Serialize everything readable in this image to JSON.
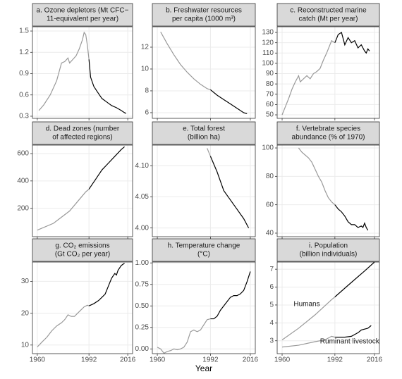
{
  "chart_data": [
    {
      "type": "line",
      "title": [
        "a. Ozone depletors (Mt CFC−",
        "11-equivalent per year)"
      ],
      "xlim": [
        1957,
        2019
      ],
      "xticks": [
        1960,
        1992,
        2016
      ],
      "ylim": [
        0.27,
        1.56
      ],
      "yticks": [
        0.3,
        0.6,
        0.9,
        1.2,
        1.5
      ],
      "series": [
        {
          "color": "#999999",
          "x": [
            1961,
            1964,
            1968,
            1972,
            1975,
            1977,
            1979,
            1980,
            1982,
            1984,
            1986,
            1988,
            1989,
            1990,
            1991,
            1992
          ],
          "values": [
            0.38,
            0.46,
            0.6,
            0.8,
            1.05,
            1.07,
            1.12,
            1.05,
            1.1,
            1.15,
            1.25,
            1.38,
            1.48,
            1.45,
            1.3,
            1.1
          ]
        },
        {
          "color": "#000000",
          "x": [
            1992,
            1993,
            1995,
            1997,
            2000,
            2003,
            2006,
            2009,
            2012,
            2014,
            2015
          ],
          "values": [
            1.1,
            0.85,
            0.72,
            0.65,
            0.55,
            0.5,
            0.45,
            0.42,
            0.38,
            0.35,
            0.34
          ]
        }
      ]
    },
    {
      "type": "line",
      "title": [
        "b. Freshwater resources",
        "per capita (1000 m³)"
      ],
      "xlim": [
        1957,
        2019
      ],
      "xticks": [
        1960,
        1992,
        2016
      ],
      "ylim": [
        5.48,
        13.87
      ],
      "yticks": [
        6,
        8,
        10,
        12
      ],
      "series": [
        {
          "color": "#999999",
          "x": [
            1962,
            1966,
            1970,
            1974,
            1978,
            1982,
            1986,
            1990,
            1992
          ],
          "values": [
            13.4,
            12.3,
            11.3,
            10.4,
            9.7,
            9.1,
            8.6,
            8.2,
            8.1
          ]
        },
        {
          "color": "#000000",
          "x": [
            1992,
            1996,
            2000,
            2004,
            2008,
            2012,
            2014
          ],
          "values": [
            8.1,
            7.6,
            7.2,
            6.8,
            6.4,
            6.0,
            5.9
          ]
        }
      ]
    },
    {
      "type": "line",
      "title": [
        "c. Reconstructed marine",
        "catch (Mt per year)"
      ],
      "xlim": [
        1957,
        2019
      ],
      "xticks": [
        1960,
        1992,
        2016
      ],
      "ylim": [
        46.6,
        135.5
      ],
      "yticks": [
        50,
        60,
        70,
        80,
        90,
        100,
        110,
        120,
        130
      ],
      "series": [
        {
          "color": "#999999",
          "x": [
            1960,
            1962,
            1964,
            1966,
            1968,
            1970,
            1971,
            1973,
            1975,
            1977,
            1979,
            1981,
            1983,
            1985,
            1987,
            1989,
            1990,
            1992
          ],
          "values": [
            50,
            58,
            66,
            75,
            82,
            88,
            82,
            85,
            88,
            85,
            90,
            92,
            95,
            103,
            110,
            118,
            122,
            120
          ]
        },
        {
          "color": "#000000",
          "x": [
            1992,
            1994,
            1996,
            1998,
            2000,
            2002,
            2004,
            2006,
            2008,
            2010,
            2011,
            2012,
            2013
          ],
          "values": [
            120,
            128,
            130,
            118,
            125,
            120,
            122,
            115,
            118,
            112,
            110,
            114,
            112
          ]
        }
      ]
    },
    {
      "type": "line",
      "title": [
        "d. Dead zones (number",
        "of affected regions)"
      ],
      "xlim": [
        1957,
        2019
      ],
      "xticks": [
        1960,
        1992,
        2016
      ],
      "ylim": [
        -8,
        662
      ],
      "yticks": [
        200,
        400,
        600
      ],
      "series": [
        {
          "color": "#999999",
          "x": [
            1960,
            1970,
            1980,
            1985,
            1990,
            1992
          ],
          "values": [
            40,
            90,
            180,
            250,
            320,
            340
          ]
        },
        {
          "color": "#000000",
          "x": [
            1992,
            1996,
            2000,
            2004,
            2008,
            2012,
            2014
          ],
          "values": [
            340,
            410,
            480,
            530,
            580,
            630,
            650
          ]
        }
      ]
    },
    {
      "type": "line",
      "title": [
        "e. Total forest",
        "(billion ha)"
      ],
      "xlim": [
        1957,
        2019
      ],
      "xticks": [
        1960,
        1992,
        2016
      ],
      "ylim": [
        3.986,
        4.133
      ],
      "yticks": [
        {
          "value": 4,
          "label": "4.00"
        },
        4.05,
        {
          "value": 4.1,
          "label": "4.10"
        }
      ],
      "series": [
        {
          "color": "#999999",
          "x": [
            1990,
            1992
          ],
          "values": [
            4.128,
            4.115
          ]
        },
        {
          "color": "#000000",
          "x": [
            1992,
            1996,
            2000,
            2004,
            2008,
            2012,
            2015
          ],
          "values": [
            4.115,
            4.09,
            4.06,
            4.045,
            4.03,
            4.015,
            4.0
          ]
        }
      ]
    },
    {
      "type": "line",
      "title": [
        "f. Vertebrate species",
        "abundance (% of 1970)"
      ],
      "xlim": [
        1957,
        2019
      ],
      "xticks": [
        1960,
        1992,
        2016
      ],
      "ylim": [
        37.5,
        102
      ],
      "yticks": [
        40,
        60,
        80,
        100
      ],
      "series": [
        {
          "color": "#999999",
          "x": [
            1970,
            1972,
            1974,
            1976,
            1978,
            1980,
            1982,
            1984,
            1986,
            1988,
            1990,
            1992
          ],
          "values": [
            100,
            97,
            95,
            93,
            90,
            85,
            80,
            76,
            70,
            65,
            62,
            60
          ]
        },
        {
          "color": "#000000",
          "x": [
            1992,
            1994,
            1996,
            1998,
            2000,
            2002,
            2004,
            2006,
            2008,
            2009,
            2010,
            2011,
            2012
          ],
          "values": [
            60,
            57,
            55,
            52,
            48,
            46,
            46,
            44,
            45,
            44,
            47,
            44,
            42
          ]
        }
      ]
    },
    {
      "type": "line",
      "title": [
        "g. CO₂ emissions",
        "(Gt CO₂ per year)"
      ],
      "xlim": [
        1957,
        2019
      ],
      "xticks": [
        1960,
        1992,
        2016
      ],
      "ylim": [
        7.3,
        36.07
      ],
      "yticks": [
        10,
        20,
        30
      ],
      "series": [
        {
          "color": "#999999",
          "x": [
            1960,
            1963,
            1966,
            1969,
            1972,
            1975,
            1977,
            1979,
            1981,
            1983,
            1985,
            1987,
            1989,
            1991,
            1992
          ],
          "values": [
            9.4,
            11,
            12.5,
            14.5,
            16,
            17,
            18,
            19.5,
            19,
            19,
            20,
            21,
            22,
            22.5,
            22.3
          ]
        },
        {
          "color": "#000000",
          "x": [
            1992,
            1995,
            1998,
            2000,
            2002,
            2004,
            2006,
            2008,
            2009,
            2010,
            2012,
            2014
          ],
          "values": [
            22.3,
            23,
            24,
            25,
            26,
            28.5,
            31,
            32.5,
            32,
            33.5,
            35,
            35.7
          ]
        }
      ]
    },
    {
      "type": "line",
      "title": [
        "h. Temperature change",
        "(°C)"
      ],
      "xlabel": "Year",
      "xlim": [
        1957,
        2019
      ],
      "xticks": [
        1960,
        1992,
        2016
      ],
      "ylim": [
        -0.055,
        1.01
      ],
      "yticks": [
        {
          "value": 0,
          "label": "0.00"
        },
        0.25,
        {
          "value": 0.5,
          "label": "0.50"
        },
        0.75,
        {
          "value": 1,
          "label": "1.00"
        }
      ],
      "series": [
        {
          "color": "#999999",
          "x": [
            1960,
            1962,
            1964,
            1966,
            1968,
            1970,
            1972,
            1974,
            1976,
            1978,
            1980,
            1982,
            1984,
            1986,
            1988,
            1990,
            1992
          ],
          "values": [
            0.02,
            0.0,
            -0.05,
            -0.03,
            -0.02,
            0.0,
            -0.01,
            0.0,
            0.02,
            0.08,
            0.2,
            0.22,
            0.2,
            0.22,
            0.28,
            0.34,
            0.35
          ]
        },
        {
          "color": "#000000",
          "x": [
            1992,
            1994,
            1996,
            1998,
            2000,
            2002,
            2004,
            2006,
            2008,
            2010,
            2012,
            2014,
            2016
          ],
          "values": [
            0.35,
            0.35,
            0.38,
            0.45,
            0.5,
            0.55,
            0.6,
            0.62,
            0.62,
            0.64,
            0.68,
            0.78,
            0.9
          ]
        }
      ]
    },
    {
      "type": "line",
      "title": [
        "i. Population",
        "(billion individuals)"
      ],
      "xlim": [
        1957,
        2019
      ],
      "xticks": [
        1960,
        1992,
        2016
      ],
      "ylim": [
        2.28,
        7.4
      ],
      "yticks": [
        3,
        4,
        5,
        6,
        7
      ],
      "annotations": [
        {
          "text": "Humans",
          "x": 1967,
          "y": 5.05
        },
        {
          "text": "Ruminant livestock",
          "x": 1983,
          "y": 2.95
        }
      ],
      "series": [
        {
          "color": "#999999",
          "x": [
            1960,
            1970,
            1980,
            1990,
            1992
          ],
          "values": [
            3.05,
            3.7,
            4.45,
            5.3,
            5.45
          ]
        },
        {
          "color": "#000000",
          "x": [
            1992,
            2000,
            2010,
            2016
          ],
          "values": [
            5.45,
            6.1,
            6.9,
            7.4
          ]
        },
        {
          "color": "#999999",
          "x": [
            1960,
            1970,
            1980,
            1986,
            1990,
            1992
          ],
          "values": [
            2.65,
            2.75,
            2.95,
            3.05,
            3.25,
            3.2
          ]
        },
        {
          "color": "#000000",
          "x": [
            1992,
            1998,
            2002,
            2006,
            2008,
            2012,
            2014
          ],
          "values": [
            3.2,
            3.2,
            3.25,
            3.45,
            3.6,
            3.7,
            3.85
          ]
        }
      ]
    }
  ]
}
